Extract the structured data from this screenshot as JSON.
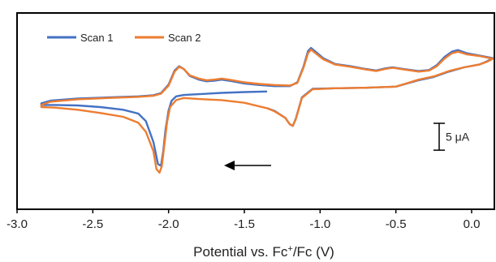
{
  "chart_data": {
    "type": "line",
    "title": "",
    "xlabel_main": "Potential vs. Fc",
    "xlabel_sup": "+",
    "xlabel_tail": "/Fc (V)",
    "ylabel": "",
    "xlim": [
      -3.0,
      0.15
    ],
    "ylim": [
      -22.0,
      14.5
    ],
    "x_ticks": [
      -3.0,
      -2.5,
      -2.0,
      -1.5,
      -1.0,
      -0.5,
      0.0
    ],
    "x_tick_labels": [
      "-3.0",
      "-2.5",
      "-2.0",
      "-1.5",
      "-1.0",
      "-0.5",
      "0.0"
    ],
    "grid": false,
    "legend_position": "top-left",
    "scale_bar": {
      "label": "5 μA",
      "value": 5
    },
    "scan_direction": "negative",
    "series": [
      {
        "name": "Scan 1",
        "color": "#4472c4",
        "points": [
          [
            -1.35,
            -0.1
          ],
          [
            -1.5,
            -0.2
          ],
          [
            -1.65,
            -0.35
          ],
          [
            -1.8,
            -0.6
          ],
          [
            -1.9,
            -0.75
          ],
          [
            -1.95,
            -1.0
          ],
          [
            -1.98,
            -1.8
          ],
          [
            -2.0,
            -3.6
          ],
          [
            -2.02,
            -7.2
          ],
          [
            -2.035,
            -11.2
          ],
          [
            -2.05,
            -13.9
          ],
          [
            -2.07,
            -13.6
          ],
          [
            -2.1,
            -9.5
          ],
          [
            -2.15,
            -5.6
          ],
          [
            -2.2,
            -4.2
          ],
          [
            -2.3,
            -3.5
          ],
          [
            -2.45,
            -3.0
          ],
          [
            -2.6,
            -2.7
          ],
          [
            -2.75,
            -2.6
          ],
          [
            -2.84,
            -2.6
          ],
          [
            -2.84,
            -2.3
          ],
          [
            -2.78,
            -1.8
          ],
          [
            -2.6,
            -1.4
          ],
          [
            -2.4,
            -1.2
          ],
          [
            -2.2,
            -1.0
          ],
          [
            -2.1,
            -0.8
          ],
          [
            -2.05,
            -0.4
          ],
          [
            -2.0,
            1.2
          ],
          [
            -1.96,
            3.8
          ],
          [
            -1.93,
            4.6
          ],
          [
            -1.9,
            4.1
          ],
          [
            -1.86,
            2.8
          ],
          [
            -1.8,
            2.1
          ],
          [
            -1.75,
            1.8
          ],
          [
            -1.7,
            1.9
          ],
          [
            -1.65,
            2.1
          ],
          [
            -1.6,
            1.9
          ],
          [
            -1.5,
            1.4
          ],
          [
            -1.4,
            1.1
          ],
          [
            -1.3,
            0.9
          ],
          [
            -1.2,
            0.9
          ],
          [
            -1.15,
            1.6
          ],
          [
            -1.11,
            4.5
          ],
          [
            -1.08,
            7.4
          ],
          [
            -1.06,
            8.0
          ],
          [
            -1.03,
            7.3
          ],
          [
            -0.98,
            6.1
          ],
          [
            -0.9,
            5.0
          ],
          [
            -0.8,
            4.6
          ],
          [
            -0.7,
            4.1
          ],
          [
            -0.63,
            3.8
          ],
          [
            -0.57,
            4.2
          ],
          [
            -0.52,
            4.4
          ],
          [
            -0.45,
            4.1
          ],
          [
            -0.35,
            3.7
          ],
          [
            -0.28,
            3.9
          ],
          [
            -0.23,
            4.8
          ],
          [
            -0.18,
            6.3
          ],
          [
            -0.13,
            7.3
          ],
          [
            -0.09,
            7.6
          ],
          [
            -0.03,
            7.0
          ],
          [
            0.05,
            6.6
          ],
          [
            0.14,
            6.1
          ],
          [
            0.1,
            5.5
          ],
          [
            0.05,
            4.9
          ],
          [
            -0.05,
            4.4
          ],
          [
            -0.15,
            3.6
          ],
          [
            -0.25,
            2.6
          ],
          [
            -0.35,
            2.0
          ],
          [
            -0.5,
            0.8
          ],
          [
            -0.7,
            0.6
          ],
          [
            -0.9,
            0.5
          ],
          [
            -1.05,
            0.4
          ],
          [
            -1.12,
            -1.2
          ],
          [
            -1.16,
            -5.1
          ],
          [
            -1.18,
            -6.5
          ],
          [
            -1.2,
            -6.2
          ],
          [
            -1.23,
            -5.0
          ],
          [
            -1.3,
            -3.7
          ],
          [
            -1.35,
            -3.2
          ]
        ]
      },
      {
        "name": "Scan 2",
        "color": "#ed7d31",
        "points": [
          [
            -1.35,
            -3.2
          ],
          [
            -1.5,
            -2.2
          ],
          [
            -1.65,
            -1.7
          ],
          [
            -1.8,
            -1.5
          ],
          [
            -1.9,
            -1.3
          ],
          [
            -1.95,
            -1.7
          ],
          [
            -1.99,
            -3.0
          ],
          [
            -2.01,
            -5.8
          ],
          [
            -2.03,
            -10.5
          ],
          [
            -2.045,
            -14.0
          ],
          [
            -2.06,
            -15.2
          ],
          [
            -2.08,
            -14.5
          ],
          [
            -2.1,
            -11.2
          ],
          [
            -2.15,
            -7.6
          ],
          [
            -2.2,
            -5.9
          ],
          [
            -2.3,
            -4.8
          ],
          [
            -2.45,
            -4.1
          ],
          [
            -2.6,
            -3.5
          ],
          [
            -2.75,
            -3.1
          ],
          [
            -2.84,
            -3.0
          ],
          [
            -2.84,
            -2.6
          ],
          [
            -2.78,
            -2.0
          ],
          [
            -2.6,
            -1.55
          ],
          [
            -2.4,
            -1.3
          ],
          [
            -2.2,
            -1.1
          ],
          [
            -2.1,
            -0.9
          ],
          [
            -2.05,
            -0.5
          ],
          [
            -2.0,
            1.0
          ],
          [
            -1.96,
            3.6
          ],
          [
            -1.93,
            4.5
          ],
          [
            -1.9,
            4.1
          ],
          [
            -1.86,
            2.9
          ],
          [
            -1.8,
            2.3
          ],
          [
            -1.75,
            2.0
          ],
          [
            -1.7,
            2.1
          ],
          [
            -1.65,
            2.3
          ],
          [
            -1.6,
            2.1
          ],
          [
            -1.5,
            1.6
          ],
          [
            -1.4,
            1.3
          ],
          [
            -1.3,
            1.1
          ],
          [
            -1.2,
            1.0
          ],
          [
            -1.15,
            1.5
          ],
          [
            -1.11,
            4.3
          ],
          [
            -1.08,
            7.0
          ],
          [
            -1.06,
            7.7
          ],
          [
            -1.03,
            7.0
          ],
          [
            -0.98,
            5.9
          ],
          [
            -0.9,
            4.9
          ],
          [
            -0.8,
            4.5
          ],
          [
            -0.7,
            4.0
          ],
          [
            -0.63,
            3.7
          ],
          [
            -0.57,
            4.1
          ],
          [
            -0.52,
            4.3
          ],
          [
            -0.45,
            4.0
          ],
          [
            -0.35,
            3.6
          ],
          [
            -0.28,
            3.8
          ],
          [
            -0.23,
            4.6
          ],
          [
            -0.18,
            6.0
          ],
          [
            -0.13,
            7.0
          ],
          [
            -0.09,
            7.3
          ],
          [
            -0.03,
            6.8
          ],
          [
            0.05,
            6.5
          ],
          [
            0.14,
            6.0
          ],
          [
            0.1,
            5.4
          ],
          [
            0.05,
            4.9
          ],
          [
            -0.05,
            4.4
          ],
          [
            -0.15,
            3.7
          ],
          [
            -0.25,
            2.7
          ],
          [
            -0.35,
            2.1
          ],
          [
            -0.5,
            0.8
          ],
          [
            -0.7,
            0.6
          ],
          [
            -0.9,
            0.5
          ],
          [
            -1.05,
            0.3
          ],
          [
            -1.12,
            -1.3
          ],
          [
            -1.16,
            -5.2
          ],
          [
            -1.18,
            -6.5
          ],
          [
            -1.2,
            -6.2
          ],
          [
            -1.23,
            -5.0
          ],
          [
            -1.3,
            -3.8
          ],
          [
            -1.35,
            -3.2
          ]
        ]
      }
    ]
  }
}
